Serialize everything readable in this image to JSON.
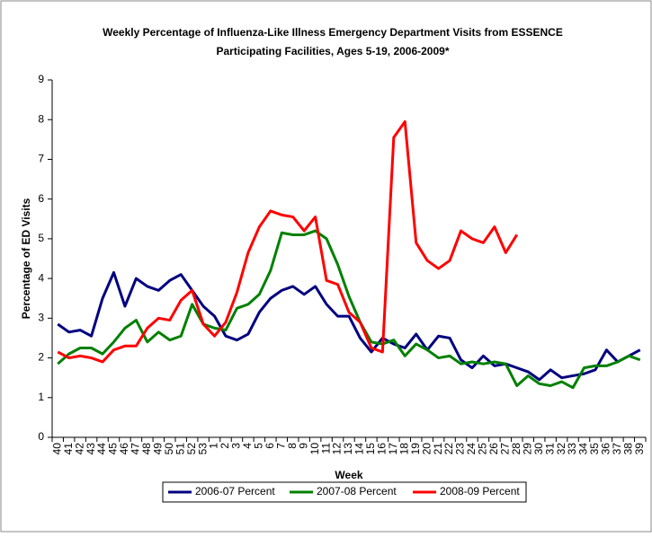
{
  "chart_data": {
    "type": "line",
    "title": [
      "Weekly Percentage of Influenza-Like Illness Emergency Department Visits from ESSENCE",
      "Participating Facilities, Ages 5-19, 2006-2009*"
    ],
    "x_label": "Week",
    "y_label": "Percentage of ED Visits",
    "categories": [
      "40",
      "41",
      "42",
      "43",
      "44",
      "45",
      "46",
      "47",
      "48",
      "49",
      "50",
      "51",
      "52",
      "53",
      "1",
      "2",
      "3",
      "4",
      "5",
      "6",
      "7",
      "8",
      "9",
      "10",
      "11",
      "12",
      "13",
      "14",
      "15",
      "16",
      "17",
      "18",
      "19",
      "20",
      "21",
      "22",
      "23",
      "24",
      "25",
      "26",
      "27",
      "28",
      "29",
      "30",
      "31",
      "32",
      "33",
      "34",
      "35",
      "36",
      "37",
      "38",
      "39"
    ],
    "ylim": [
      0,
      9
    ],
    "yticks": [
      0,
      1,
      2,
      3,
      4,
      5,
      6,
      7,
      8,
      9
    ],
    "grid": false,
    "legend": "bottom",
    "series": [
      {
        "name": "2006-07 Percent",
        "color": "#000080",
        "values": [
          2.85,
          2.65,
          2.7,
          2.55,
          3.5,
          4.15,
          3.3,
          4.0,
          3.8,
          3.7,
          3.95,
          4.1,
          3.7,
          3.3,
          3.05,
          2.55,
          2.45,
          2.6,
          3.15,
          3.5,
          3.7,
          3.8,
          3.6,
          3.8,
          3.35,
          3.05,
          3.05,
          2.5,
          2.15,
          2.5,
          2.35,
          2.25,
          2.6,
          2.2,
          2.55,
          2.5,
          1.95,
          1.75,
          2.05,
          1.8,
          1.85,
          1.75,
          1.65,
          1.45,
          1.7,
          1.5,
          1.55,
          1.6,
          1.7,
          2.2,
          1.9,
          2.05,
          2.2
        ]
      },
      {
        "name": "2007-08 Percent",
        "color": "#008000",
        "values": [
          1.85,
          2.1,
          2.25,
          2.25,
          2.1,
          2.4,
          2.75,
          2.95,
          2.4,
          2.65,
          2.45,
          2.55,
          3.35,
          2.85,
          2.75,
          2.7,
          3.25,
          3.35,
          3.6,
          4.2,
          5.15,
          5.1,
          5.1,
          5.2,
          5.0,
          4.35,
          3.55,
          2.9,
          2.4,
          2.35,
          2.45,
          2.05,
          2.35,
          2.2,
          2.0,
          2.05,
          1.85,
          1.9,
          1.85,
          1.9,
          1.85,
          1.3,
          1.55,
          1.35,
          1.3,
          1.4,
          1.25,
          1.75,
          1.8,
          1.8,
          1.9,
          2.05,
          1.95
        ]
      },
      {
        "name": "2008-09 Percent",
        "color": "#ff0000",
        "values": [
          2.15,
          2.0,
          2.05,
          2.0,
          1.9,
          2.2,
          2.3,
          2.3,
          2.75,
          3.0,
          2.95,
          3.45,
          3.7,
          2.85,
          2.55,
          2.9,
          3.65,
          4.65,
          5.3,
          5.7,
          5.6,
          5.55,
          5.2,
          5.55,
          3.95,
          3.85,
          3.15,
          2.9,
          2.25,
          2.15,
          7.55,
          7.95,
          4.9,
          4.45,
          4.25,
          4.45,
          5.2,
          5.0,
          4.9,
          5.3,
          4.65,
          5.1,
          null,
          null,
          null,
          null,
          null,
          null,
          null,
          null,
          null,
          null,
          null
        ]
      }
    ]
  }
}
